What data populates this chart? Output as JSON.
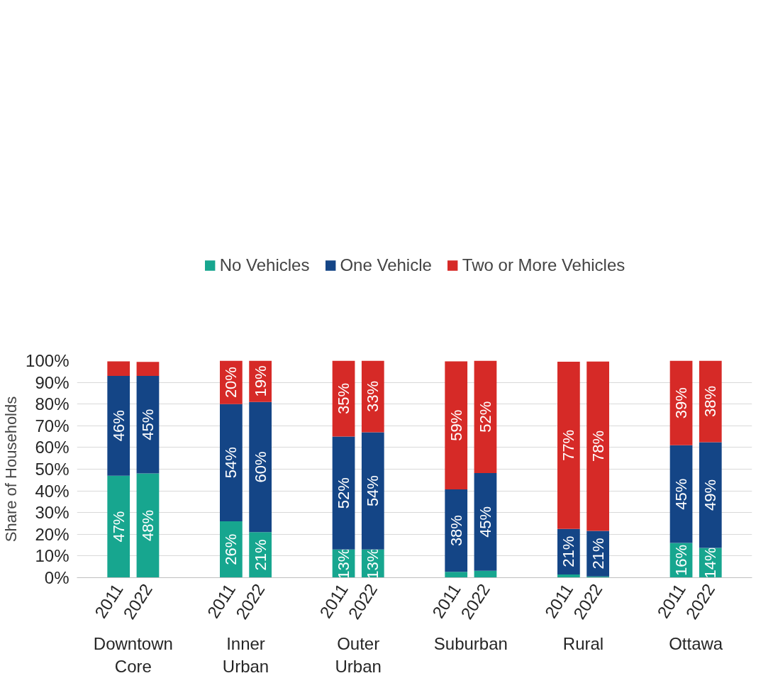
{
  "chart_data": {
    "type": "bar",
    "stacked": true,
    "ylabel": "Share of Households",
    "categories": [
      "2011",
      "2022",
      "2011",
      "2022",
      "2011",
      "2022",
      "2011",
      "2022",
      "2011",
      "2022",
      "2011",
      "2022"
    ],
    "annotations": [
      "Downtown Core",
      "Inner Urban",
      "Outer Urban",
      "Suburban",
      "Rural",
      "Ottawa"
    ],
    "series": [
      {
        "name": "No Vehicles",
        "color": "#17a68f",
        "values": [
          47,
          48,
          26,
          21,
          13,
          13,
          2.7,
          3.2,
          1.5,
          0.6,
          16,
          13.7
        ],
        "value_labels": [
          "47%",
          "48%",
          "26%",
          "21%",
          "13%",
          "13%",
          null,
          null,
          null,
          null,
          "16%",
          "14%"
        ]
      },
      {
        "name": "One Vehicle",
        "color": "#144586",
        "values": [
          46,
          45,
          54,
          60,
          52,
          54,
          38,
          45,
          21,
          21,
          45,
          48.7
        ],
        "value_labels": [
          "46%",
          "45%",
          "54%",
          "60%",
          "52%",
          "54%",
          "38%",
          "45%",
          "21%",
          "21%",
          "45%",
          "49%"
        ]
      },
      {
        "name": "Two or More Vehicles",
        "color": "#d62a27",
        "values": [
          6.7,
          6.4,
          20,
          19,
          35,
          33,
          59,
          51.8,
          77,
          78,
          39,
          37.6
        ],
        "value_labels": [
          null,
          null,
          "20%",
          "19%",
          "35%",
          "33%",
          "59%",
          "52%",
          "77%",
          "78%",
          "39%",
          "38%"
        ]
      }
    ],
    "ylim": [
      0,
      100
    ],
    "yticks": [
      {
        "value": 0,
        "label": "0%"
      },
      {
        "value": 10,
        "label": "10%"
      },
      {
        "value": 20,
        "label": "20%"
      },
      {
        "value": 30,
        "label": "30%"
      },
      {
        "value": 40,
        "label": "40%"
      },
      {
        "value": 50,
        "label": "50%"
      },
      {
        "value": 60,
        "label": "60%"
      },
      {
        "value": 70,
        "label": "70%"
      },
      {
        "value": 80,
        "label": "80%"
      },
      {
        "value": 90,
        "label": "90%"
      },
      {
        "value": 100,
        "label": "100%"
      }
    ],
    "grid": "y",
    "legend": "top"
  }
}
